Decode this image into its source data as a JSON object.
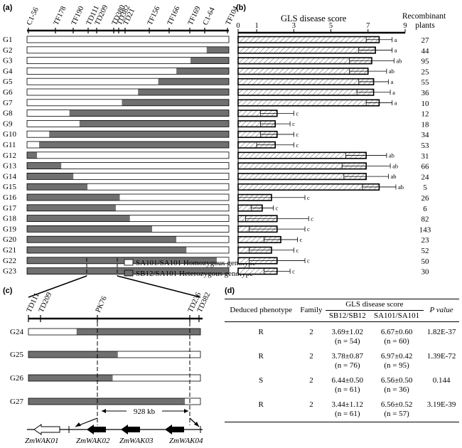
{
  "panels": {
    "a": "(a)",
    "b": "(b)",
    "c": "(c)",
    "d": "(d)"
  },
  "colors": {
    "homozygous": "#ffffff",
    "heterozygous": "#707070",
    "hatch": "#9a9a9a",
    "axis": "#000000"
  },
  "panel_a": {
    "markers": [
      "C1-56",
      "TF178",
      "TF190",
      "TD111",
      "TD209",
      "TD380",
      "TD382",
      "TD21",
      "TF156",
      "TF166",
      "TF169",
      "C1-64",
      "TF104"
    ],
    "line_labels": [
      "G1",
      "G2",
      "G3",
      "G4",
      "G5",
      "G6",
      "G7",
      "G8",
      "G9",
      "G10",
      "G11",
      "G12",
      "G13",
      "G14",
      "G15",
      "G16",
      "G17",
      "G18",
      "G19",
      "G20",
      "G21",
      "G22",
      "G23"
    ],
    "genotype_segments": [
      [
        [
          0,
          1,
          "homo"
        ]
      ],
      [
        [
          0,
          0.89,
          "homo"
        ],
        [
          0.89,
          1,
          "het"
        ]
      ],
      [
        [
          0,
          0.81,
          "homo"
        ],
        [
          0.81,
          1,
          "het"
        ]
      ],
      [
        [
          0,
          0.74,
          "homo"
        ],
        [
          0.74,
          1,
          "het"
        ]
      ],
      [
        [
          0,
          0.65,
          "homo"
        ],
        [
          0.65,
          1,
          "het"
        ]
      ],
      [
        [
          0,
          0.55,
          "homo"
        ],
        [
          0.55,
          1,
          "het"
        ]
      ],
      [
        [
          0,
          0.47,
          "homo"
        ],
        [
          0.47,
          1,
          "het"
        ]
      ],
      [
        [
          0,
          0.21,
          "homo"
        ],
        [
          0.21,
          1,
          "het"
        ]
      ],
      [
        [
          0,
          0.26,
          "homo"
        ],
        [
          0.26,
          1,
          "het"
        ]
      ],
      [
        [
          0,
          0.11,
          "homo"
        ],
        [
          0.11,
          1,
          "het"
        ]
      ],
      [
        [
          0,
          0.06,
          "homo"
        ],
        [
          0.06,
          1,
          "het"
        ]
      ],
      [
        [
          0,
          0.05,
          "het"
        ],
        [
          0.05,
          1,
          "homo"
        ]
      ],
      [
        [
          0,
          0.17,
          "het"
        ],
        [
          0.17,
          1,
          "homo"
        ]
      ],
      [
        [
          0,
          0.23,
          "het"
        ],
        [
          0.23,
          1,
          "homo"
        ]
      ],
      [
        [
          0,
          0.3,
          "het"
        ],
        [
          0.3,
          1,
          "homo"
        ]
      ],
      [
        [
          0,
          0.46,
          "het"
        ],
        [
          0.46,
          1,
          "homo"
        ]
      ],
      [
        [
          0,
          0.44,
          "het"
        ],
        [
          0.44,
          1,
          "homo"
        ]
      ],
      [
        [
          0,
          0.51,
          "het"
        ],
        [
          0.51,
          1,
          "homo"
        ]
      ],
      [
        [
          0,
          0.62,
          "het"
        ],
        [
          0.62,
          1,
          "homo"
        ]
      ],
      [
        [
          0,
          0.74,
          "het"
        ],
        [
          0.74,
          1,
          "homo"
        ]
      ],
      [
        [
          0,
          0.79,
          "het"
        ],
        [
          0.79,
          1,
          "homo"
        ]
      ],
      [
        [
          0,
          0.94,
          "het"
        ],
        [
          0.94,
          1,
          "homo"
        ]
      ],
      [
        [
          0,
          1,
          "het"
        ]
      ]
    ],
    "legend": {
      "homozygous": "SA101/SA101 Homozygous genotype",
      "heterozygous": "SB12/SA101 Heterozygous genotype"
    }
  },
  "chart_data": {
    "type": "bar",
    "orientation": "horizontal",
    "title": "GLS disease score",
    "categories": [
      "G1",
      "G2",
      "G3",
      "G4",
      "G5",
      "G6",
      "G7",
      "G8",
      "G9",
      "G10",
      "G11",
      "G12",
      "G13",
      "G14",
      "G15",
      "G16",
      "G17",
      "G18",
      "G19",
      "G20",
      "G21",
      "G22",
      "G23"
    ],
    "values": [
      7.6,
      7.4,
      7.2,
      7.0,
      7.3,
      7.3,
      7.6,
      2.1,
      2.0,
      2.1,
      2.0,
      6.9,
      6.9,
      6.9,
      7.6,
      1.8,
      1.3,
      2.1,
      2.1,
      2.3,
      1.8,
      2.1,
      2.1
    ],
    "errors": [
      0.7,
      0.9,
      1.2,
      1.0,
      0.8,
      0.9,
      0.7,
      0.9,
      0.8,
      0.9,
      1.0,
      1.1,
      1.3,
      1.2,
      0.9,
      1.8,
      0.6,
      1.7,
      1.5,
      0.9,
      1.2,
      1.5,
      0.7
    ],
    "letters": [
      "a",
      "a",
      "ab",
      "ab",
      "a",
      "a",
      "a",
      "c",
      "c",
      "c",
      "c",
      "ab",
      "ab",
      "ab",
      "ab",
      "c",
      "c",
      "c",
      "c",
      "c",
      "c",
      "c",
      "c"
    ],
    "xlim": [
      0,
      9
    ],
    "xticks": [
      "0",
      "1",
      "3",
      "5",
      "7",
      "9"
    ],
    "header": "Recombinant plants",
    "recombinant_plants": [
      "27",
      "44",
      "95",
      "25",
      "55",
      "36",
      "10",
      "12",
      "18",
      "34",
      "53",
      "31",
      "66",
      "24",
      "5",
      "26",
      "6",
      "82",
      "143",
      "23",
      "52",
      "50",
      "30"
    ]
  },
  "panel_c": {
    "markers": [
      "TD111",
      "TD209",
      "PK76",
      "TD236",
      "TD382"
    ],
    "lines": [
      "G24",
      "G25",
      "G26",
      "G27"
    ],
    "genotype_segments": [
      [
        [
          0,
          0.28,
          "homo"
        ],
        [
          0.28,
          1,
          "het"
        ]
      ],
      [
        [
          0,
          0.52,
          "het"
        ],
        [
          0.52,
          1,
          "homo"
        ]
      ],
      [
        [
          0,
          0.49,
          "het"
        ],
        [
          0.49,
          1,
          "homo"
        ]
      ],
      [
        [
          0,
          0.91,
          "het"
        ],
        [
          0.91,
          1,
          "homo"
        ]
      ]
    ],
    "distance": "928 kb",
    "genes": [
      "ZmWAK01",
      "ZmWAK02",
      "ZmWAK03",
      "ZmWAK04"
    ]
  },
  "table_d": {
    "headers": {
      "phenotype": "Deduced phenotype",
      "family": "Family",
      "score": "GLS disease score",
      "sb": "SB12/SB12",
      "sa": "SA101/SA101",
      "pvalue": "P value"
    },
    "rows": [
      {
        "phenotype": "R",
        "family": "2",
        "sb": "3.69±1.02",
        "sb_n": "(n = 54)",
        "sa": "6.67±0.60",
        "sa_n": "(n = 60)",
        "p": "1.82E-37"
      },
      {
        "phenotype": "R",
        "family": "2",
        "sb": "3.78±0.87",
        "sb_n": "(n = 76)",
        "sa": "6.97±0.42",
        "sa_n": "(n = 95)",
        "p": "1.39E-72"
      },
      {
        "phenotype": "S",
        "family": "2",
        "sb": "6.44±0.50",
        "sb_n": "(n = 61)",
        "sa": "6.56±0.50",
        "sa_n": "(n = 36)",
        "p": "0.144"
      },
      {
        "phenotype": "R",
        "family": "2",
        "sb": "3.44±1.12",
        "sb_n": "(n = 61)",
        "sa": "6.56±0.52",
        "sa_n": "(n = 57)",
        "p": "3.19E-39"
      }
    ]
  }
}
